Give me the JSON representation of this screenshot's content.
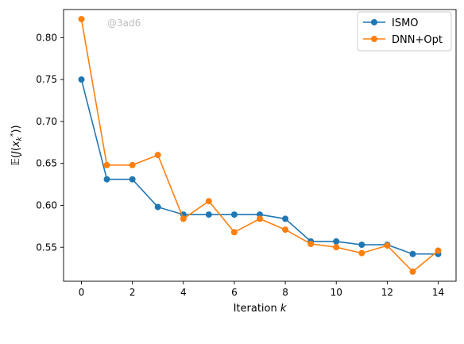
{
  "chart_data": {
    "type": "line",
    "xlabel": "Iteration k",
    "ylabel": "E(J(x_k*))",
    "xlim": [
      -0.7,
      14.7
    ],
    "ylim": [
      0.5095,
      0.8335
    ],
    "xticks": [
      0,
      2,
      4,
      6,
      8,
      10,
      12,
      14
    ],
    "yticks": [
      0.55,
      0.6,
      0.65,
      0.7,
      0.75,
      0.8
    ],
    "ytick_labels": [
      "0.55",
      "0.60",
      "0.65",
      "0.70",
      "0.75",
      "0.80"
    ],
    "grid": false,
    "legend_position": "top-right",
    "watermark": "@3ad6",
    "x": [
      0,
      1,
      2,
      3,
      4,
      5,
      6,
      7,
      8,
      9,
      10,
      11,
      12,
      13,
      14
    ],
    "series": [
      {
        "name": "ISMO",
        "color": "#1f77b4",
        "values": [
          0.75,
          0.631,
          0.631,
          0.598,
          0.589,
          0.589,
          0.589,
          0.589,
          0.584,
          0.557,
          0.557,
          0.553,
          0.553,
          0.542,
          0.542
        ]
      },
      {
        "name": "DNN+Opt",
        "color": "#ff7f0e",
        "values": [
          0.822,
          0.648,
          0.648,
          0.66,
          0.584,
          0.605,
          0.568,
          0.584,
          0.571,
          0.554,
          0.55,
          0.543,
          0.552,
          0.521,
          0.546
        ]
      }
    ]
  }
}
